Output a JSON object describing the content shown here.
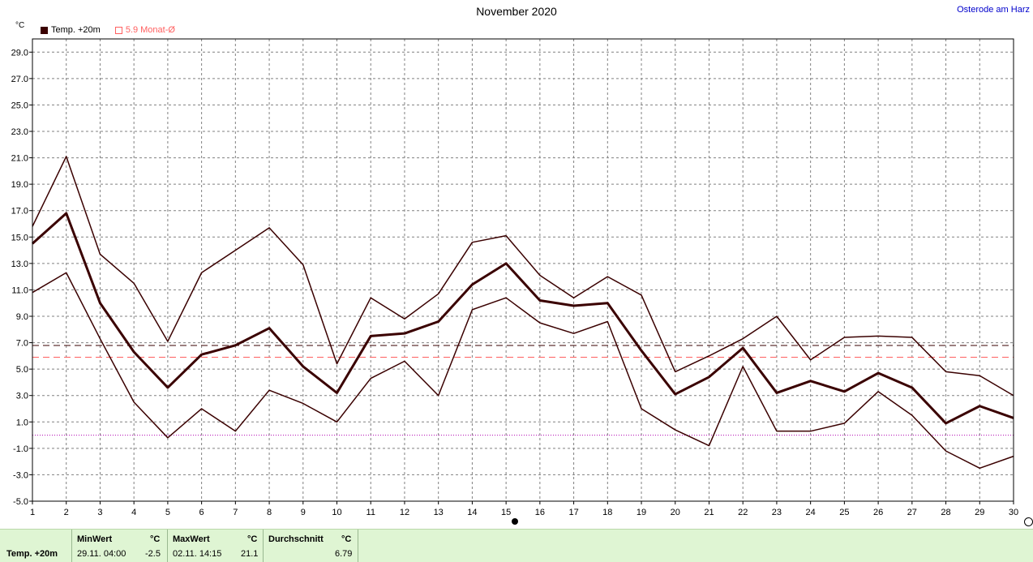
{
  "header": {
    "title": "November 2020",
    "location": "Osterode am Harz",
    "unit": "°C"
  },
  "legend": {
    "series_label": "Temp. +20m",
    "avg_value": "5.9",
    "avg_label": "Monat-Ø"
  },
  "chart_data": {
    "type": "line",
    "title": "November 2020",
    "ylabel": "°C",
    "ylim": [
      -5,
      30
    ],
    "yticks": [
      "-5.0",
      "-3.0",
      "-1.0",
      "1.0",
      "3.0",
      "5.0",
      "7.0",
      "9.0",
      "11.0",
      "13.0",
      "15.0",
      "17.0",
      "19.0",
      "21.0",
      "23.0",
      "25.0",
      "27.0",
      "29.0"
    ],
    "x": [
      1,
      2,
      3,
      4,
      5,
      6,
      7,
      8,
      9,
      10,
      11,
      12,
      13,
      14,
      15,
      16,
      17,
      18,
      19,
      20,
      21,
      22,
      23,
      24,
      25,
      26,
      27,
      28,
      29,
      30
    ],
    "grid": true,
    "series": [
      {
        "name": "Temp. +20m",
        "role": "mean",
        "color": "#3a0000",
        "values": [
          14.5,
          16.8,
          10.0,
          6.3,
          3.6,
          6.1,
          6.8,
          8.1,
          5.2,
          3.2,
          7.5,
          7.7,
          8.6,
          11.4,
          13.0,
          10.2,
          9.8,
          10.0,
          6.4,
          3.1,
          4.4,
          6.6,
          3.2,
          4.1,
          3.3,
          4.7,
          3.6,
          0.9,
          2.2,
          1.3
        ]
      },
      {
        "role": "max",
        "color": "#3a0000",
        "values": [
          15.8,
          21.1,
          13.7,
          11.5,
          7.1,
          12.3,
          14.0,
          15.7,
          12.9,
          5.4,
          10.4,
          8.8,
          10.7,
          14.6,
          15.1,
          12.1,
          10.4,
          12.0,
          10.6,
          4.8,
          6.0,
          7.3,
          9.0,
          5.7,
          7.4,
          7.5,
          7.4,
          4.8,
          4.5,
          3.0
        ]
      },
      {
        "role": "min",
        "color": "#3a0000",
        "values": [
          10.8,
          12.3,
          7.3,
          2.5,
          -0.2,
          2.0,
          0.3,
          3.4,
          2.4,
          1.0,
          4.3,
          5.6,
          3.0,
          9.5,
          10.4,
          8.5,
          7.7,
          8.6,
          2.0,
          0.4,
          -0.8,
          5.2,
          0.3,
          0.3,
          0.9,
          3.3,
          1.5,
          -1.2,
          -2.5,
          -1.6
        ]
      }
    ],
    "reference_lines": [
      {
        "value": 6.79,
        "color": "#3a0000",
        "style": "dashed"
      },
      {
        "value": 5.9,
        "color": "#ff6060",
        "style": "dashed"
      },
      {
        "value": 0,
        "color": "#b000b0",
        "style": "dotted"
      }
    ]
  },
  "footer": {
    "series_name": "Temp. +20m",
    "min": {
      "header": "MinWert",
      "unit": "°C",
      "datetime": "29.11.  04:00",
      "value": "-2.5"
    },
    "max": {
      "header": "MaxWert",
      "unit": "°C",
      "datetime": "02.11.  14:15",
      "value": "21.1"
    },
    "avg": {
      "header": "Durchschnitt",
      "unit": "°C",
      "value": "6.79"
    }
  },
  "colors": {
    "series": "#3a0000",
    "avg_line": "#ff6060",
    "zero_line": "#b000b0",
    "grid": "#808080",
    "footer_bg": "#dff5d3",
    "location_text": "#0000cc"
  }
}
